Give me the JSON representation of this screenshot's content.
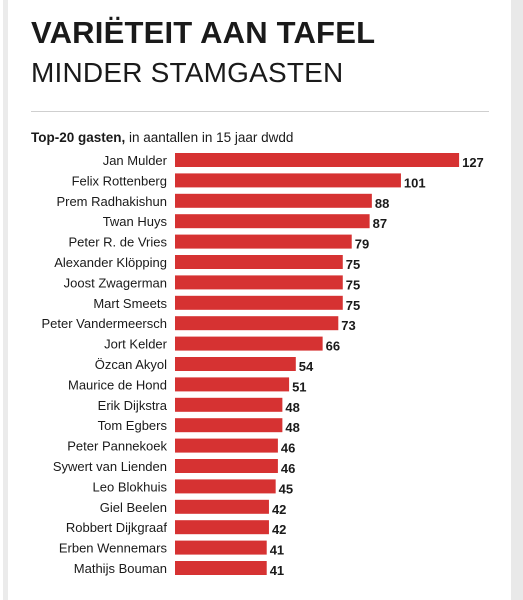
{
  "header": {
    "title": "VARIËTEIT AAN TAFEL",
    "subtitle": "MINDER STAMGASTEN"
  },
  "caption": {
    "bold": "Top-20 gasten,",
    "rest": " in aantallen in 15 jaar dwdd"
  },
  "colors": {
    "bar": "#d63232",
    "text": "#1a1a1a"
  },
  "chart_data": {
    "type": "bar",
    "orientation": "horizontal",
    "title": "Top-20 gasten, in aantallen in 15 jaar dwdd",
    "categories": [
      "Jan Mulder",
      "Felix Rottenberg",
      "Prem Radhakishun",
      "Twan Huys",
      "Peter R. de Vries",
      "Alexander Klöpping",
      "Joost Zwagerman",
      "Mart Smeets",
      "Peter Vandermeersch",
      "Jort Kelder",
      "Özcan Akyol",
      "Maurice de Hond",
      "Erik Dijkstra",
      "Tom Egbers",
      "Peter Pannekoek",
      "Sywert van Lienden",
      "Leo Blokhuis",
      "Giel Beelen",
      "Robbert Dijkgraaf",
      "Erben Wennemars",
      "Mathijs Bouman"
    ],
    "values": [
      127,
      101,
      88,
      87,
      79,
      75,
      75,
      75,
      73,
      66,
      54,
      51,
      48,
      48,
      46,
      46,
      45,
      42,
      42,
      41,
      41
    ],
    "data_labels": true,
    "grid": false
  }
}
